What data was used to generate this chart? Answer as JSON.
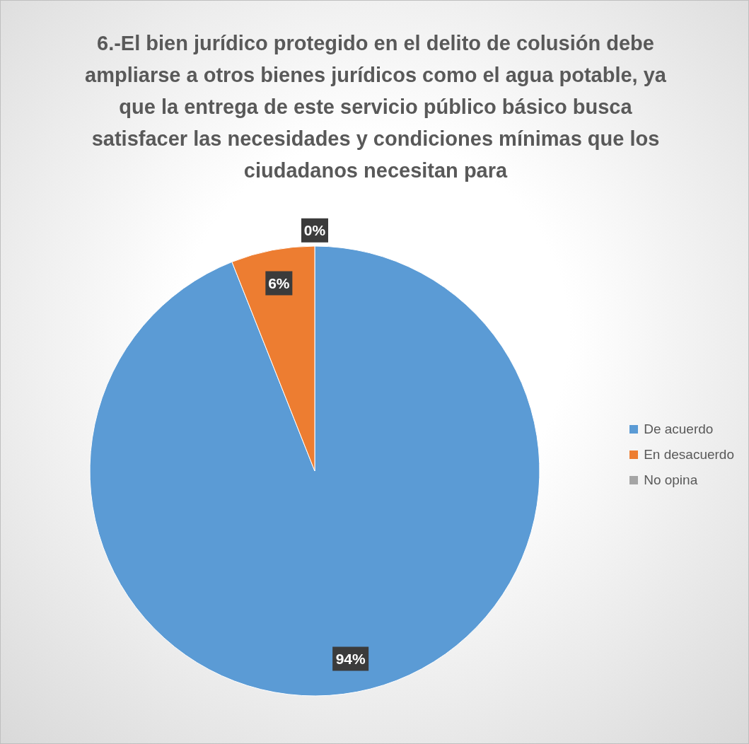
{
  "chart_data": {
    "type": "pie",
    "title": "6.-El bien jurídico protegido en el delito de colusión debe ampliarse a otros bienes jurídicos como el agua potable, ya que la entrega de este servicio público básico busca satisfacer las necesidades y condiciones mínimas que los ciudadanos necesitan para",
    "categories": [
      "De acuerdo",
      "En desacuerdo",
      "No opina"
    ],
    "values": [
      94,
      6,
      0
    ],
    "colors": [
      "#5b9bd5",
      "#ed7d31",
      "#a5a5a5"
    ],
    "value_labels": [
      "94%",
      "6%",
      "0%"
    ],
    "legend": "right"
  }
}
